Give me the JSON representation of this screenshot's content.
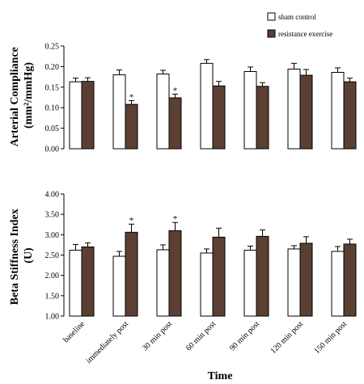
{
  "legend": [
    {
      "label": "sham control",
      "color": "#ffffff"
    },
    {
      "label": "resistance exercise",
      "color": "#5b3f33"
    }
  ],
  "x_title": "Time",
  "chart_data": [
    {
      "type": "bar",
      "ylabel_lines": [
        "Arterial Compliance",
        "(mm²/mmHg)"
      ],
      "ylim": [
        0,
        0.25
      ],
      "yticks": [
        "0.00",
        "0.05",
        "0.10",
        "0.15",
        "0.20",
        "0.25"
      ],
      "categories": [
        "baseline",
        "immediately post",
        "30 min post",
        "60 min post",
        "90 min post",
        "120 min post",
        "150 min post"
      ],
      "series": [
        {
          "name": "sham control",
          "values": [
            0.163,
            0.18,
            0.182,
            0.208,
            0.188,
            0.194,
            0.186
          ],
          "errors": [
            0.009,
            0.012,
            0.009,
            0.009,
            0.011,
            0.014,
            0.011
          ]
        },
        {
          "name": "resistance exercise",
          "values": [
            0.164,
            0.108,
            0.124,
            0.153,
            0.152,
            0.179,
            0.163
          ],
          "errors": [
            0.009,
            0.009,
            0.009,
            0.011,
            0.009,
            0.014,
            0.009
          ]
        }
      ],
      "significance": [
        null,
        "*",
        "*",
        null,
        null,
        null,
        null
      ]
    },
    {
      "type": "bar",
      "ylabel_lines": [
        "Beta Stiffness Index",
        "(U)"
      ],
      "ylim": [
        1.0,
        4.0
      ],
      "yticks": [
        "1.00",
        "1.50",
        "2.00",
        "2.50",
        "3.00",
        "3.50",
        "4.00"
      ],
      "categories": [
        "baseline",
        "immediately post",
        "30 min post",
        "60 min post",
        "90 min post",
        "120 min post",
        "150 min post"
      ],
      "series": [
        {
          "name": "sham control",
          "values": [
            2.62,
            2.47,
            2.63,
            2.55,
            2.62,
            2.65,
            2.59
          ],
          "errors": [
            0.14,
            0.12,
            0.12,
            0.1,
            0.1,
            0.08,
            0.12
          ]
        },
        {
          "name": "resistance exercise",
          "values": [
            2.7,
            3.06,
            3.1,
            2.94,
            2.96,
            2.79,
            2.77
          ],
          "errors": [
            0.1,
            0.2,
            0.2,
            0.22,
            0.16,
            0.16,
            0.12
          ]
        }
      ],
      "significance": [
        null,
        "*",
        "*",
        null,
        null,
        null,
        null
      ]
    }
  ]
}
